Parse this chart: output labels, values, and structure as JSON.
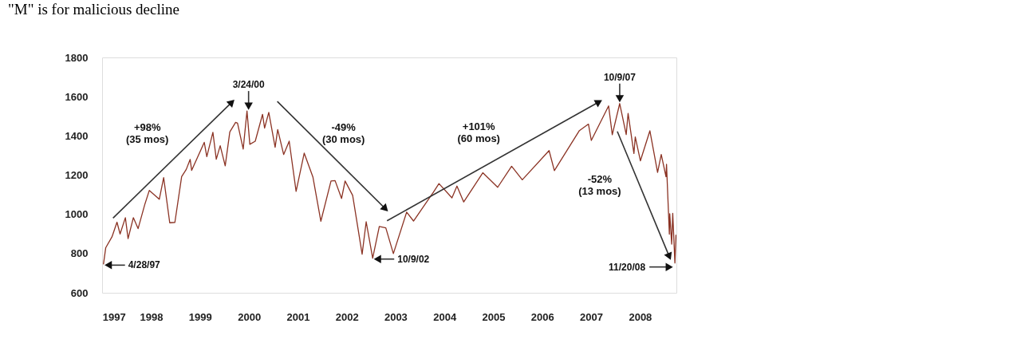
{
  "chart_data": {
    "type": "line",
    "title": "\"M\" is for malicious decline",
    "x": [
      "1997-04-28",
      "1997-05-15",
      "1997-06-30",
      "1997-08-06",
      "1997-08-29",
      "1997-10-07",
      "1997-10-27",
      "1997-12-05",
      "1998-01-09",
      "1998-02-27",
      "1998-04-02",
      "1998-06-15",
      "1998-07-17",
      "1998-08-31",
      "1998-10-08",
      "1998-11-27",
      "1998-12-31",
      "1999-01-29",
      "1999-02-09",
      "1999-05-13",
      "1999-06-01",
      "1999-07-16",
      "1999-08-10",
      "1999-09-08",
      "1999-10-15",
      "1999-11-18",
      "1999-12-31",
      "2000-01-14",
      "2000-02-25",
      "2000-03-24",
      "2000-04-14",
      "2000-05-24",
      "2000-07-17",
      "2000-08-01",
      "2000-09-01",
      "2000-10-18",
      "2000-11-06",
      "2000-12-20",
      "2001-01-30",
      "2001-03-22",
      "2001-05-21",
      "2001-07-24",
      "2001-09-21",
      "2001-12-05",
      "2002-01-04",
      "2002-02-21",
      "2002-03-19",
      "2002-05-14",
      "2002-07-23",
      "2002-08-22",
      "2002-10-09",
      "2002-11-27",
      "2003-01-14",
      "2003-03-11",
      "2003-06-17",
      "2003-08-07",
      "2003-12-31",
      "2004-02-11",
      "2004-05-17",
      "2004-06-23",
      "2004-08-12",
      "2004-12-31",
      "2005-04-20",
      "2005-08-01",
      "2005-10-19",
      "2006-05-05",
      "2006-06-13",
      "2006-12-15",
      "2007-02-20",
      "2007-03-13",
      "2007-07-19",
      "2007-08-15",
      "2007-10-09",
      "2007-11-26",
      "2007-12-10",
      "2008-01-22",
      "2008-02-01",
      "2008-03-10",
      "2008-05-19",
      "2008-07-15",
      "2008-08-11",
      "2008-09-15",
      "2008-09-19",
      "2008-10-10",
      "2008-10-13",
      "2008-10-27",
      "2008-11-04",
      "2008-11-20",
      "2008-11-28"
    ],
    "series": [
      {
        "color": "#8b3324",
        "values": [
          745,
          830,
          885,
          960,
          900,
          983,
          876,
          983,
          927,
          1049,
          1122,
          1077,
          1187,
          957,
          959,
          1192,
          1229,
          1280,
          1224,
          1367,
          1294,
          1418,
          1281,
          1350,
          1247,
          1420,
          1469,
          1465,
          1333,
          1527,
          1357,
          1373,
          1510,
          1440,
          1520,
          1342,
          1432,
          1305,
          1373,
          1117,
          1312,
          1191,
          965,
          1170,
          1172,
          1081,
          1170,
          1097,
          797,
          962,
          776,
          938,
          931,
          800,
          1011,
          966,
          1112,
          1157,
          1084,
          1144,
          1063,
          1212,
          1138,
          1245,
          1176,
          1325,
          1223,
          1427,
          1460,
          1377,
          1553,
          1406,
          1565,
          1407,
          1515,
          1310,
          1395,
          1273,
          1426,
          1214,
          1305,
          1192,
          1255,
          899,
          1003,
          848,
          1005,
          752,
          896
        ]
      }
    ],
    "xlim": [
      "1997-04-18",
      "2008-12-01"
    ],
    "xticks": [
      {
        "value": "1997-04-20",
        "label": "1997"
      },
      {
        "value": "1998-04-16",
        "label": "1998"
      },
      {
        "value": "1999-04-12",
        "label": "1999"
      },
      {
        "value": "2000-04-08",
        "label": "2000"
      },
      {
        "value": "2001-04-04",
        "label": "2001"
      },
      {
        "value": "2002-03-31",
        "label": "2002"
      },
      {
        "value": "2003-03-27",
        "label": "2003"
      },
      {
        "value": "2004-03-23",
        "label": "2004"
      },
      {
        "value": "2005-03-19",
        "label": "2005"
      },
      {
        "value": "2006-03-15",
        "label": "2006"
      },
      {
        "value": "2007-03-11",
        "label": "2007"
      },
      {
        "value": "2008-03-07",
        "label": "2008"
      }
    ],
    "ylim": [
      600,
      1800
    ],
    "yticks": [
      600,
      800,
      1000,
      1200,
      1400,
      1600,
      1800
    ],
    "annotations": [
      {
        "text": "4/28/97",
        "x": "1997-04-28",
        "y": 745
      },
      {
        "text": "3/24/00",
        "x": "2000-03-24",
        "y": 1527
      },
      {
        "text": "10/9/02",
        "x": "2002-10-09",
        "y": 776
      },
      {
        "text": "10/9/07",
        "x": "2007-10-09",
        "y": 1565
      },
      {
        "text": "11/20/08",
        "x": "2008-11-20",
        "y": 752
      },
      "+98%\n(35 mos)",
      "-49%\n(30 mos)",
      "+101%\n(60 mos)",
      "-52%\n(13 mos)"
    ]
  }
}
